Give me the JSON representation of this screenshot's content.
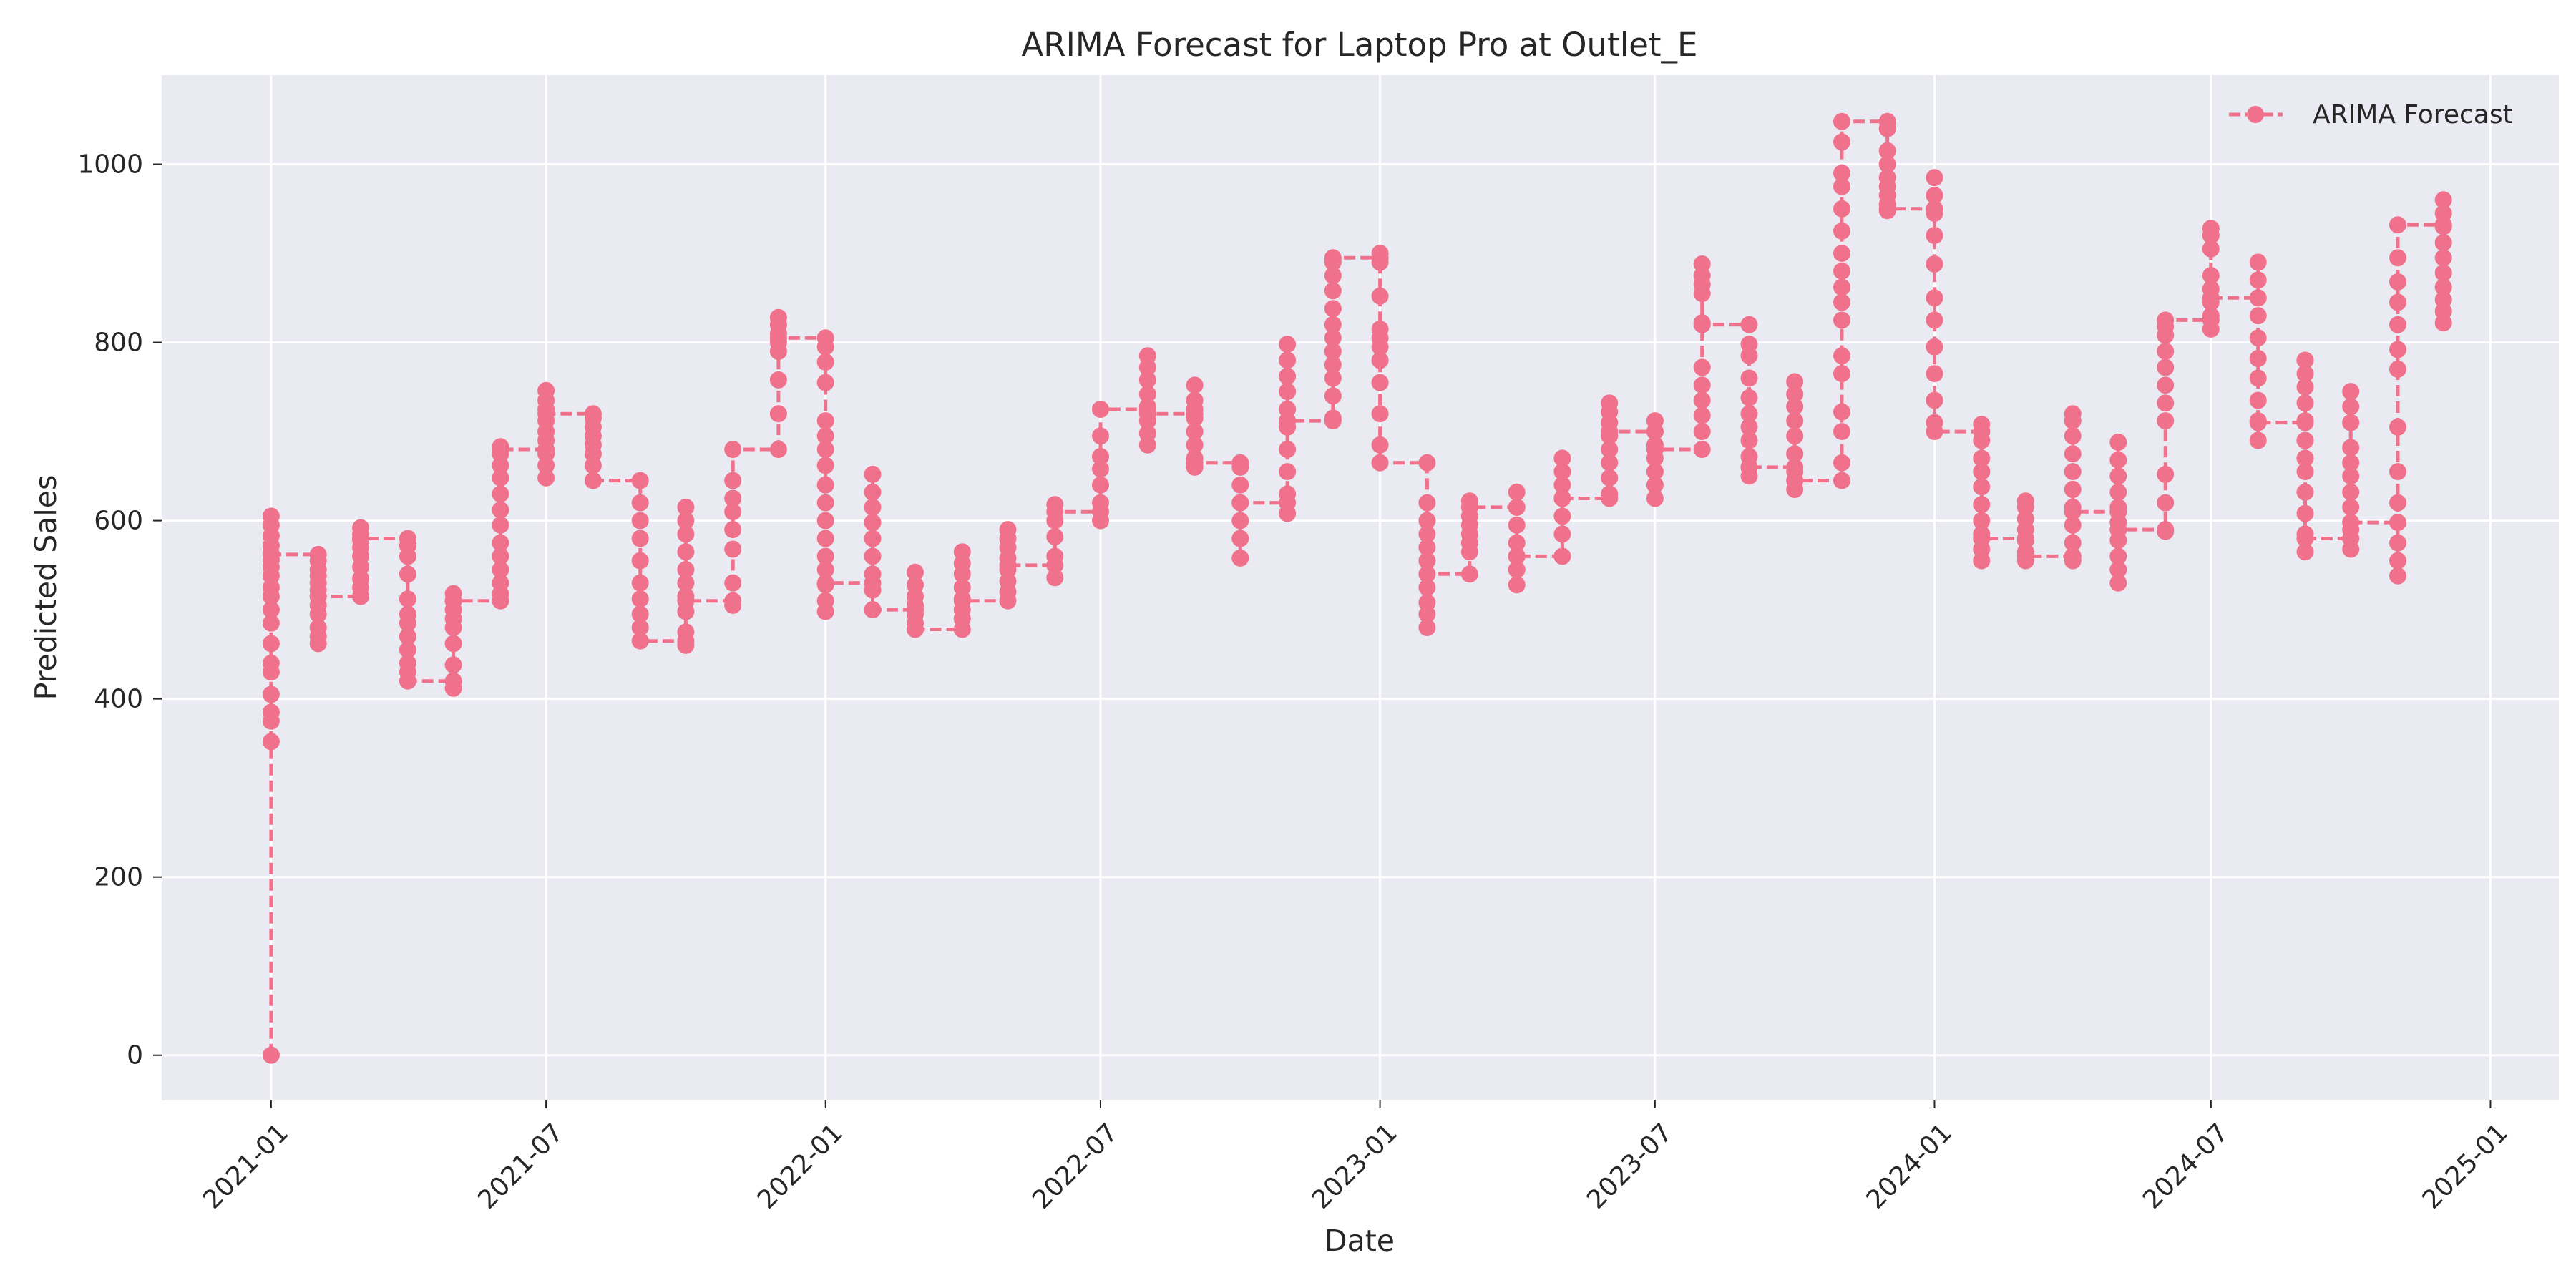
{
  "chart_data": {
    "type": "line",
    "title": "ARIMA Forecast for Laptop Pro at Outlet_E",
    "xlabel": "Date",
    "ylabel": "Predicted Sales",
    "xlim": [
      "2020-10-21",
      "2025-02-15"
    ],
    "ylim": [
      -50,
      1100
    ],
    "x_ticks": [
      "2021-01",
      "2021-07",
      "2022-01",
      "2022-07",
      "2023-01",
      "2023-07",
      "2024-01",
      "2024-07",
      "2025-01"
    ],
    "y_ticks": [
      0,
      200,
      400,
      600,
      800,
      1000
    ],
    "grid": true,
    "legend": {
      "position": "top-right"
    },
    "colors": {
      "series": "#f0718b",
      "plot_background": "#eaeaf2",
      "grid": "#ffffff",
      "text": "#262626"
    },
    "series": [
      {
        "name": "ARIMA Forecast",
        "marker": "circle",
        "linestyle": "dashed",
        "points": [
          {
            "date": "2021-01-01",
            "values": [
              0,
              352,
              375,
              385,
              405,
              430,
              440,
              462,
              485,
              500,
              515,
              525,
              538,
              548,
              556,
              563,
              572,
              583,
              595,
              605,
              562
            ]
          },
          {
            "date": "2021-02-01",
            "values": [
              562,
              555,
              545,
              538,
              530,
              522,
              515,
              505,
              495,
              480,
              470,
              462,
              515
            ]
          },
          {
            "date": "2021-03-01",
            "values": [
              515,
              525,
              535,
              548,
              560,
              570,
              578,
              585,
              592,
              580
            ]
          },
          {
            "date": "2021-04-01",
            "values": [
              580,
              572,
              560,
              540,
              512,
              495,
              485,
              470,
              455,
              440,
              430,
              420
            ]
          },
          {
            "date": "2021-05-01",
            "values": [
              420,
              412,
              438,
              462,
              480,
              490,
              500,
              510,
              518,
              510
            ]
          },
          {
            "date": "2021-06-01",
            "values": [
              510,
              518,
              530,
              545,
              560,
              575,
              595,
              612,
              630,
              648,
              662,
              675,
              683,
              680
            ]
          },
          {
            "date": "2021-07-01",
            "values": [
              680,
              648,
              662,
              675,
              690,
              700,
              712,
              725,
              735,
              746,
              720
            ]
          },
          {
            "date": "2021-08-01",
            "values": [
              720,
              715,
              705,
              695,
              685,
              675,
              662,
              645
            ]
          },
          {
            "date": "2021-09-01",
            "values": [
              645,
              620,
              600,
              580,
              555,
              530,
              512,
              495,
              480,
              465
            ]
          },
          {
            "date": "2021-10-01",
            "values": [
              465,
              460,
              475,
              498,
              515,
              530,
              545,
              565,
              585,
              600,
              615,
              510
            ]
          },
          {
            "date": "2021-11-01",
            "values": [
              510,
              505,
              530,
              568,
              590,
              610,
              625,
              645,
              680
            ]
          },
          {
            "date": "2021-12-01",
            "values": [
              680,
              720,
              758,
              790,
              800,
              810,
              820,
              828,
              805
            ]
          },
          {
            "date": "2022-01-01",
            "values": [
              805,
              795,
              778,
              755,
              712,
              695,
              680,
              662,
              640,
              620,
              600,
              580,
              560,
              545,
              528,
              510,
              498,
              530
            ]
          },
          {
            "date": "2022-02-01",
            "values": [
              530,
              522,
              540,
              560,
              580,
              598,
              615,
              632,
              652,
              500
            ]
          },
          {
            "date": "2022-03-01",
            "values": [
              500,
              485,
              495,
              505,
              515,
              528,
              542,
              478
            ]
          },
          {
            "date": "2022-04-01",
            "values": [
              478,
              490,
              500,
              512,
              525,
              540,
              552,
              565,
              510
            ]
          },
          {
            "date": "2022-05-01",
            "values": [
              510,
              520,
              532,
              545,
              558,
              570,
              580,
              590,
              550
            ]
          },
          {
            "date": "2022-06-01",
            "values": [
              550,
              536,
              560,
              582,
              600,
              618,
              610
            ]
          },
          {
            "date": "2022-07-01",
            "values": [
              610,
              600,
              620,
              640,
              658,
              672,
              695,
              725
            ]
          },
          {
            "date": "2022-08-01",
            "values": [
              725,
              685,
              698,
              712,
              728,
              742,
              758,
              772,
              785,
              720
            ]
          },
          {
            "date": "2022-09-01",
            "values": [
              720,
              725,
              735,
              752,
              715,
              700,
              685,
              670,
              660,
              665
            ]
          },
          {
            "date": "2022-10-01",
            "values": [
              665,
              660,
              640,
              620,
              600,
              580,
              558,
              620
            ]
          },
          {
            "date": "2022-11-01",
            "values": [
              620,
              608,
              630,
              655,
              680,
              705,
              725,
              745,
              762,
              780,
              798,
              712
            ]
          },
          {
            "date": "2022-12-01",
            "values": [
              712,
              715,
              740,
              760,
              775,
              790,
              805,
              820,
              838,
              858,
              875,
              890,
              895
            ]
          },
          {
            "date": "2023-01-01",
            "values": [
              895,
              900,
              890,
              852,
              815,
              805,
              795,
              780,
              755,
              720,
              685,
              665
            ]
          },
          {
            "date": "2023-02-01",
            "values": [
              665,
              620,
              600,
              585,
              570,
              555,
              540,
              525,
              508,
              495,
              480,
              540
            ]
          },
          {
            "date": "2023-03-01",
            "values": [
              540,
              565,
              575,
              585,
              595,
              605,
              615,
              622,
              615
            ]
          },
          {
            "date": "2023-04-01",
            "values": [
              615,
              632,
              615,
              595,
              575,
              560,
              545,
              528,
              560
            ]
          },
          {
            "date": "2023-05-01",
            "values": [
              560,
              585,
              605,
              625,
              640,
              655,
              670,
              625
            ]
          },
          {
            "date": "2023-06-01",
            "values": [
              625,
              630,
              648,
              665,
              680,
              695,
              710,
              722,
              732,
              700
            ]
          },
          {
            "date": "2023-07-01",
            "values": [
              700,
              712,
              700,
              685,
              670,
              655,
              640,
              625,
              680
            ]
          },
          {
            "date": "2023-08-01",
            "values": [
              680,
              700,
              718,
              735,
              752,
              772,
              822,
              855,
              865,
              875,
              888,
              820
            ]
          },
          {
            "date": "2023-09-01",
            "values": [
              820,
              798,
              785,
              760,
              738,
              720,
              705,
              690,
              672,
              660,
              650,
              660
            ]
          },
          {
            "date": "2023-10-01",
            "values": [
              660,
              635,
              655,
              675,
              695,
              712,
              728,
              742,
              756,
              645
            ]
          },
          {
            "date": "2023-11-01",
            "values": [
              645,
              665,
              700,
              722,
              765,
              785,
              825,
              845,
              862,
              880,
              900,
              925,
              950,
              975,
              990,
              1025,
              1048
            ]
          },
          {
            "date": "2023-12-01",
            "values": [
              1048,
              1040,
              1015,
              1000,
              985,
              975,
              965,
              955,
              948,
              950
            ]
          },
          {
            "date": "2024-01-01",
            "values": [
              950,
              985,
              965,
              945,
              920,
              888,
              850,
              825,
              795,
              765,
              735,
              710,
              700
            ]
          },
          {
            "date": "2024-02-01",
            "values": [
              700,
              708,
              690,
              670,
              655,
              638,
              618,
              600,
              585,
              568,
              555,
              580
            ]
          },
          {
            "date": "2024-03-01",
            "values": [
              580,
              555,
              565,
              578,
              590,
              602,
              615,
              622,
              560
            ]
          },
          {
            "date": "2024-04-01",
            "values": [
              560,
              555,
              575,
              595,
              615,
              635,
              655,
              675,
              695,
              712,
              720,
              610
            ]
          },
          {
            "date": "2024-05-01",
            "values": [
              610,
              688,
              668,
              650,
              632,
              615,
              598,
              578,
              560,
              545,
              530,
              590
            ]
          },
          {
            "date": "2024-06-01",
            "values": [
              590,
              588,
              620,
              652,
              712,
              732,
              752,
              772,
              790,
              808,
              818,
              825
            ]
          },
          {
            "date": "2024-07-01",
            "values": [
              825,
              815,
              830,
              845,
              860,
              875,
              905,
              920,
              928,
              850
            ]
          },
          {
            "date": "2024-08-01",
            "values": [
              850,
              890,
              870,
              850,
              830,
              805,
              782,
              760,
              735,
              712,
              690,
              710
            ]
          },
          {
            "date": "2024-09-01",
            "values": [
              710,
              780,
              765,
              750,
              732,
              712,
              690,
              670,
              655,
              632,
              608,
              585,
              565,
              580
            ]
          },
          {
            "date": "2024-10-01",
            "values": [
              580,
              568,
              590,
              615,
              632,
              650,
              665,
              682,
              710,
              728,
              745,
              598
            ]
          },
          {
            "date": "2024-11-01",
            "values": [
              598,
              538,
              555,
              575,
              620,
              655,
              705,
              770,
              792,
              820,
              845,
              868,
              895,
              932
            ]
          },
          {
            "date": "2024-12-01",
            "values": [
              932,
              960,
              945,
              930,
              912,
              895,
              878,
              862,
              848,
              835,
              822
            ]
          }
        ]
      }
    ]
  }
}
